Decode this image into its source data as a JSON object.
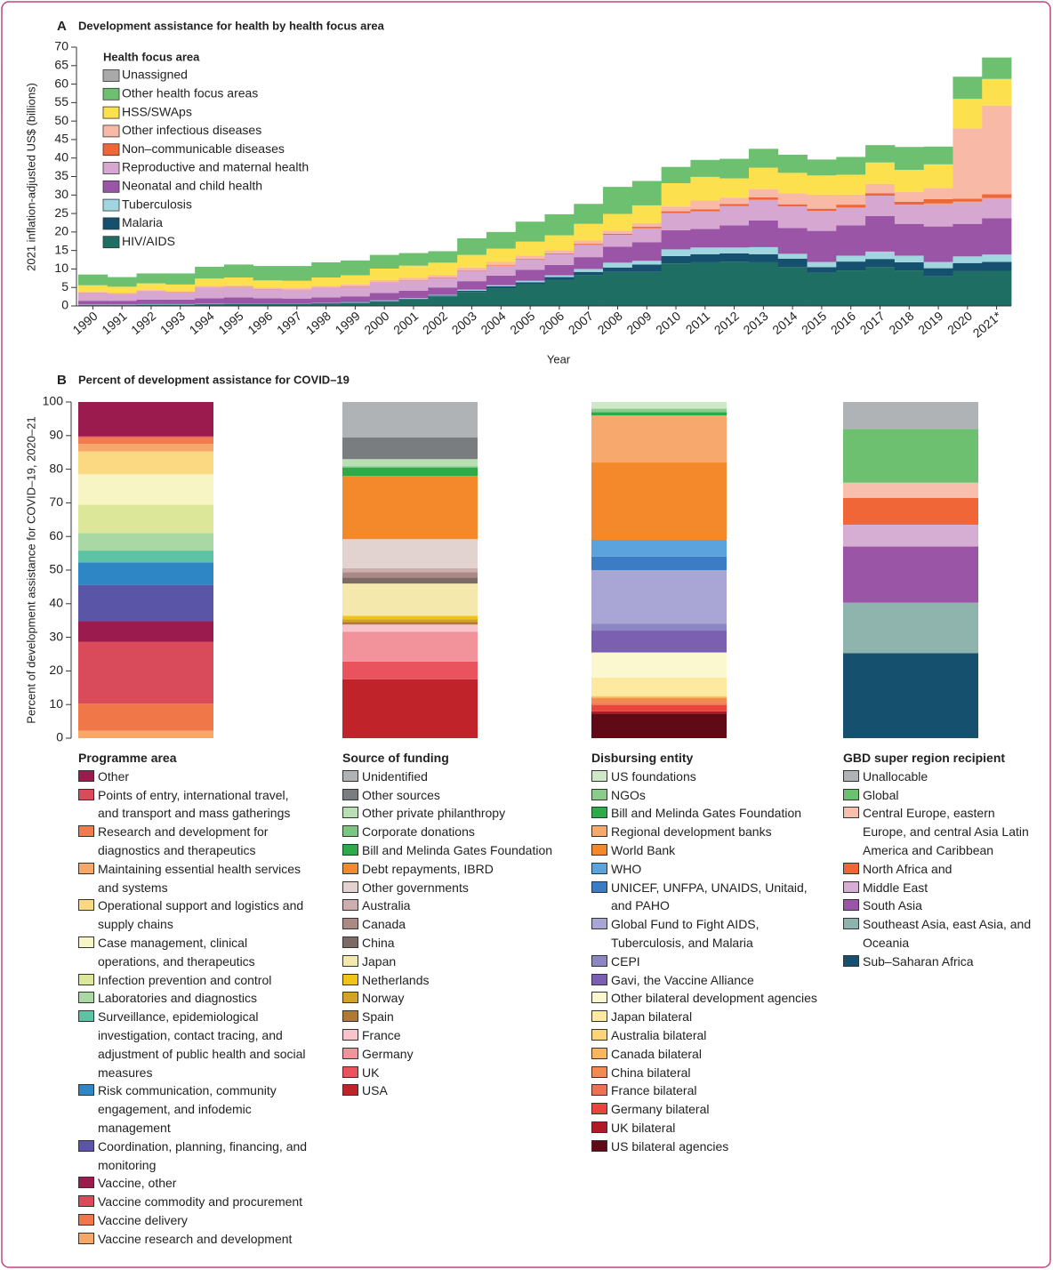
{
  "chart_data": [
    {
      "type": "area",
      "step": true,
      "stacked": true,
      "label": "A",
      "title": "Development assistance for health by health focus area",
      "xlabel": "Year",
      "ylabel": "2021 inflation-adjusted US$ (billions)",
      "legend_title": "Health focus area",
      "categories": [
        "1990",
        "1991",
        "1992",
        "1993",
        "1994",
        "1995",
        "1996",
        "1997",
        "1998",
        "1999",
        "2000",
        "2001",
        "2002",
        "2003",
        "2004",
        "2005",
        "2006",
        "2007",
        "2008",
        "2009",
        "2010",
        "2011",
        "2012",
        "2013",
        "2014",
        "2015",
        "2016",
        "2017",
        "2018",
        "2019",
        "2020",
        "2021*"
      ],
      "ylim": [
        0,
        70
      ],
      "yticks": [
        0,
        5,
        10,
        15,
        20,
        25,
        30,
        35,
        40,
        45,
        50,
        55,
        60,
        65,
        70
      ],
      "series": [
        {
          "name": "Unassigned",
          "color": "#a9a9a9",
          "values": [
            0,
            0,
            0,
            0,
            0,
            0,
            0,
            0,
            0,
            0,
            0,
            0,
            0,
            0,
            0,
            0,
            0,
            0,
            0,
            0,
            0,
            0,
            0,
            0,
            0,
            0,
            0,
            0,
            0,
            0,
            0,
            0
          ]
        },
        {
          "name": "Other health focus areas",
          "color": "#6cc070",
          "values": [
            2.9,
            2.6,
            2.7,
            3.0,
            3.2,
            3.5,
            3.9,
            4.0,
            4.1,
            4.0,
            3.7,
            3.4,
            3.1,
            4.5,
            4.5,
            5.4,
            5.7,
            5.4,
            7.3,
            6.6,
            4.4,
            4.6,
            5.3,
            5.1,
            4.9,
            4.3,
            4.8,
            4.7,
            6.2,
            4.8,
            6.0,
            5.8
          ]
        },
        {
          "name": "HSS/SWAps",
          "color": "#fde04e",
          "values": [
            1.8,
            1.6,
            1.8,
            1.8,
            2.0,
            2.1,
            1.9,
            2.0,
            2.3,
            2.5,
            3.1,
            3.3,
            3.4,
            3.4,
            3.6,
            3.8,
            4.0,
            4.5,
            4.5,
            4.8,
            6.3,
            6.4,
            5.2,
            5.8,
            5.5,
            5.2,
            5.4,
            5.8,
            6.0,
            6.4,
            8.0,
            7.2
          ]
        },
        {
          "name": "Other infectious diseases",
          "color": "#f8b9a6",
          "values": [
            0.3,
            0.3,
            0.3,
            0.3,
            0.4,
            0.4,
            0.4,
            0.4,
            0.5,
            0.5,
            0.6,
            0.6,
            0.6,
            0.8,
            0.9,
            0.9,
            0.9,
            0.9,
            0.9,
            1.0,
            1.3,
            2.4,
            1.7,
            2.2,
            3.0,
            3.8,
            2.7,
            2.5,
            2.6,
            3.0,
            19.0,
            24.0
          ]
        },
        {
          "name": "Non–communicable diseases",
          "color": "#f06637",
          "values": [
            0.1,
            0.1,
            0.1,
            0.1,
            0.1,
            0.1,
            0.1,
            0.1,
            0.1,
            0.1,
            0.1,
            0.1,
            0.1,
            0.1,
            0.2,
            0.2,
            0.2,
            0.3,
            0.3,
            0.4,
            0.5,
            0.5,
            0.6,
            0.7,
            0.6,
            0.6,
            0.8,
            0.7,
            0.8,
            1.2,
            0.8,
            1.0
          ]
        },
        {
          "name": "Reproductive and maternal health",
          "color": "#d6a7d1",
          "values": [
            2.0,
            1.8,
            2.2,
            1.9,
            2.8,
            2.8,
            2.4,
            2.3,
            2.5,
            2.6,
            2.8,
            2.8,
            2.6,
            2.8,
            2.6,
            2.7,
            2.9,
            3.3,
            3.2,
            3.8,
            4.6,
            4.8,
            5.2,
            5.6,
            5.8,
            5.4,
            4.8,
            5.5,
            5.2,
            6.2,
            6.0,
            5.5
          ]
        },
        {
          "name": "Neonatal and child health",
          "color": "#9b55a6",
          "values": [
            1.0,
            1.0,
            1.2,
            1.2,
            1.5,
            1.6,
            1.4,
            1.3,
            1.5,
            1.6,
            2.0,
            2.0,
            2.0,
            2.3,
            2.6,
            3.0,
            2.8,
            3.2,
            4.3,
            5.0,
            5.2,
            5.0,
            6.0,
            7.2,
            7.0,
            8.4,
            8.2,
            9.6,
            8.6,
            9.6,
            8.8,
            9.8
          ]
        },
        {
          "name": "Tuberculosis",
          "color": "#9fd6e0",
          "values": [
            0.1,
            0.1,
            0.1,
            0.1,
            0.1,
            0.1,
            0.1,
            0.1,
            0.1,
            0.1,
            0.2,
            0.2,
            0.2,
            0.3,
            0.3,
            0.4,
            0.5,
            0.8,
            1.3,
            1.0,
            1.8,
            1.8,
            1.6,
            1.9,
            1.3,
            1.4,
            1.6,
            2.0,
            1.8,
            1.7,
            1.8,
            2.0
          ]
        },
        {
          "name": "Malaria",
          "color": "#15506f",
          "values": [
            0.1,
            0.1,
            0.1,
            0.1,
            0.1,
            0.1,
            0.1,
            0.1,
            0.1,
            0.1,
            0.1,
            0.1,
            0.2,
            0.3,
            0.5,
            0.6,
            0.8,
            0.8,
            1.2,
            2.0,
            2.0,
            2.2,
            2.2,
            2.2,
            2.3,
            1.5,
            2.4,
            2.2,
            2.2,
            2.2,
            2.2,
            2.4
          ]
        },
        {
          "name": "HIV/AIDS",
          "color": "#1f6e64",
          "values": [
            0.2,
            0.2,
            0.3,
            0.3,
            0.4,
            0.5,
            0.5,
            0.5,
            0.6,
            0.8,
            1.2,
            1.8,
            2.6,
            3.8,
            4.8,
            5.8,
            7.0,
            8.4,
            9.2,
            9.2,
            11.5,
            11.8,
            12.0,
            11.8,
            10.5,
            9.0,
            9.6,
            10.5,
            9.6,
            8.0,
            9.4,
            9.5
          ]
        }
      ]
    },
    {
      "type": "stacked_percent_bar",
      "label": "B",
      "title": "Percent of development assistance for COVID–19",
      "ylabel": "Percent of development assistance for COVID–19, 2020–21",
      "ylim": [
        0,
        100
      ],
      "yticks": [
        0,
        10,
        20,
        30,
        40,
        50,
        60,
        70,
        80,
        90,
        100
      ],
      "groups": [
        {
          "title": "Programme area",
          "series": [
            {
              "name": "Other",
              "color": "#9b1b4e",
              "value": 10.2
            },
            {
              "name": "Points of entry, international travel, and transport and mass gatherings",
              "color": "#d94a5a",
              "value": 0.3
            },
            {
              "name": "Research and development for diagnostics and therapeutics",
              "color": "#ef7b4f",
              "value": 2.0
            },
            {
              "name": "Maintaining essential health services and systems",
              "color": "#f5a86a",
              "value": 2.2
            },
            {
              "name": "Operational support and logistics and supply chains",
              "color": "#fbd882",
              "value": 6.8
            },
            {
              "name": "Case management, clinical operations, and therapeutics",
              "color": "#f8f5c4",
              "value": 9.0
            },
            {
              "name": "Infection prevention and control",
              "color": "#dde79a",
              "value": 8.5
            },
            {
              "name": "Laboratories and diagnostics",
              "color": "#a9d8a4",
              "value": 5.2
            },
            {
              "name": "Surveillance, epidemiological investigation, contact tracing, and adjustment of public health and social measures",
              "color": "#5cc4a4",
              "value": 3.5
            },
            {
              "name": "Risk communication, community engagement, and infodemic management",
              "color": "#2f86c4",
              "value": 6.7
            },
            {
              "name": "Coordination, planning, financing, and monitoring",
              "color": "#5b55a8",
              "value": 10.8
            },
            {
              "name": "Vaccine, other",
              "color": "#9b1b4e",
              "value": 6.1
            },
            {
              "name": "Vaccine commodity and procurement",
              "color": "#d94a5a",
              "value": 18.4
            },
            {
              "name": "Vaccine delivery",
              "color": "#f07848",
              "value": 8.1
            },
            {
              "name": "Vaccine research and development",
              "color": "#f6a86a",
              "value": 2.2
            }
          ]
        },
        {
          "title": "Source of funding",
          "series": [
            {
              "name": "Unidentified",
              "color": "#b0b3b6",
              "value": 10.5
            },
            {
              "name": "Other sources",
              "color": "#7a7d80",
              "value": 6.5
            },
            {
              "name": "Other private philanthropy",
              "color": "#b9e0b4",
              "value": 2.1
            },
            {
              "name": "Corporate donations",
              "color": "#7dc682",
              "value": 0.4
            },
            {
              "name": "Bill and Melinda Gates Foundation",
              "color": "#2faa4a",
              "value": 2.5
            },
            {
              "name": "Debt repayments, IBRD",
              "color": "#f3892a",
              "value": 18.8
            },
            {
              "name": "Other governments",
              "color": "#e2d2d0",
              "value": 8.6
            },
            {
              "name": "Australia",
              "color": "#cdaeae",
              "value": 1.2
            },
            {
              "name": "Canada",
              "color": "#ab8a86",
              "value": 1.6
            },
            {
              "name": "China",
              "color": "#7b6a66",
              "value": 1.8
            },
            {
              "name": "Japan",
              "color": "#f5e8ad",
              "value": 9.6
            },
            {
              "name": "Netherlands",
              "color": "#f2c418",
              "value": 1.0
            },
            {
              "name": "Norway",
              "color": "#d4a324",
              "value": 0.8
            },
            {
              "name": "Spain",
              "color": "#b07a30",
              "value": 0.8
            },
            {
              "name": "France",
              "color": "#f8c3cb",
              "value": 2.1
            },
            {
              "name": "Germany",
              "color": "#f2929a",
              "value": 8.9
            },
            {
              "name": "UK",
              "color": "#e8535e",
              "value": 5.3
            },
            {
              "name": "USA",
              "color": "#c1232b",
              "value": 17.5
            }
          ]
        },
        {
          "title": "Disbursing entity",
          "series": [
            {
              "name": "US foundations",
              "color": "#cfe9c8",
              "value": 2
            },
            {
              "name": "NGOs",
              "color": "#8bcb8c",
              "value": 1
            },
            {
              "name": "Bill and Melinda Gates Foundation",
              "color": "#2faa4a",
              "value": 1
            },
            {
              "name": "Regional development banks",
              "color": "#f7a86c",
              "value": 14
            },
            {
              "name": "World Bank",
              "color": "#f3892a",
              "value": 23
            },
            {
              "name": "WHO",
              "color": "#5ba3dc",
              "value": 5
            },
            {
              "name": "UNICEF, UNFPA, UNAIDS, Unitaid, and PAHO",
              "color": "#3c7cc4",
              "value": 4
            },
            {
              "name": "Global Fund to Fight AIDS, Tuberculosis, and Malaria",
              "color": "#a9a6d6",
              "value": 16
            },
            {
              "name": "CEPI",
              "color": "#8c86c4",
              "value": 2
            },
            {
              "name": "Gavi, the Vaccine Alliance",
              "color": "#7b5fb0",
              "value": 6.5
            },
            {
              "name": "Other bilateral development agencies",
              "color": "#fbf8cf",
              "value": 7.5
            },
            {
              "name": "Japan bilateral",
              "color": "#fde9a0",
              "value": 5.4
            },
            {
              "name": "Australia bilateral",
              "color": "#fdd47a",
              "value": 0.3
            },
            {
              "name": "Canada bilateral",
              "color": "#f9b65e",
              "value": 0.4
            },
            {
              "name": "China bilateral",
              "color": "#f28b52",
              "value": 1.6
            },
            {
              "name": "France bilateral",
              "color": "#f07055",
              "value": 0.5
            },
            {
              "name": "Germany bilateral",
              "color": "#e8453c",
              "value": 1.8
            },
            {
              "name": "UK bilateral",
              "color": "#b01a24",
              "value": 0.7
            },
            {
              "name": "US bilateral agencies",
              "color": "#5f0a14",
              "value": 7.3
            }
          ]
        },
        {
          "title": "GBD super region recipient",
          "series": [
            {
              "name": "Unallocable",
              "color": "#b0b3b6",
              "value": 8
            },
            {
              "name": "Global",
              "color": "#6cc070",
              "value": 16
            },
            {
              "name": "Central Europe, eastern Europe, and central Asia Latin America and Caribbean",
              "color": "#f8bfae",
              "value": 4.5
            },
            {
              "name": "North Africa and",
              "color": "#f06637",
              "value": 8
            },
            {
              "name": "Middle East",
              "color": "#d7aed3",
              "value": 6.5
            },
            {
              "name": "South Asia",
              "color": "#9b55a6",
              "value": 16.7
            },
            {
              "name": "Southeast Asia, east Asia, and Oceania",
              "color": "#8fb3ad",
              "value": 15
            },
            {
              "name": "Sub–Saharan Africa",
              "color": "#15506f",
              "value": 25.3
            }
          ]
        }
      ]
    }
  ]
}
